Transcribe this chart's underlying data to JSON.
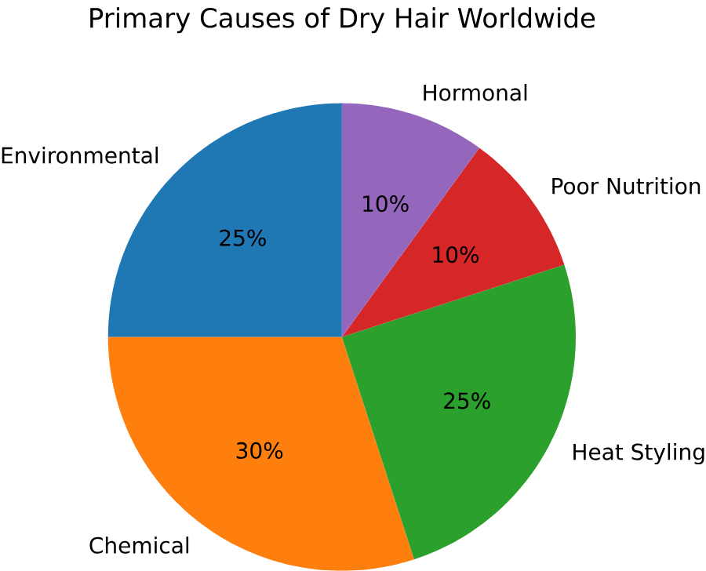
{
  "chart_data": {
    "type": "pie",
    "title": "Primary Causes of Dry Hair Worldwide",
    "categories": [
      "Environmental",
      "Chemical",
      "Heat Styling",
      "Poor Nutrition",
      "Hormonal"
    ],
    "values": [
      25,
      30,
      25,
      10,
      10
    ],
    "colors": [
      "#1f77b4",
      "#ff7f0e",
      "#2ca02c",
      "#d62728",
      "#9467bd"
    ],
    "value_labels": [
      "25%",
      "30%",
      "25%",
      "10%",
      "10%"
    ]
  }
}
